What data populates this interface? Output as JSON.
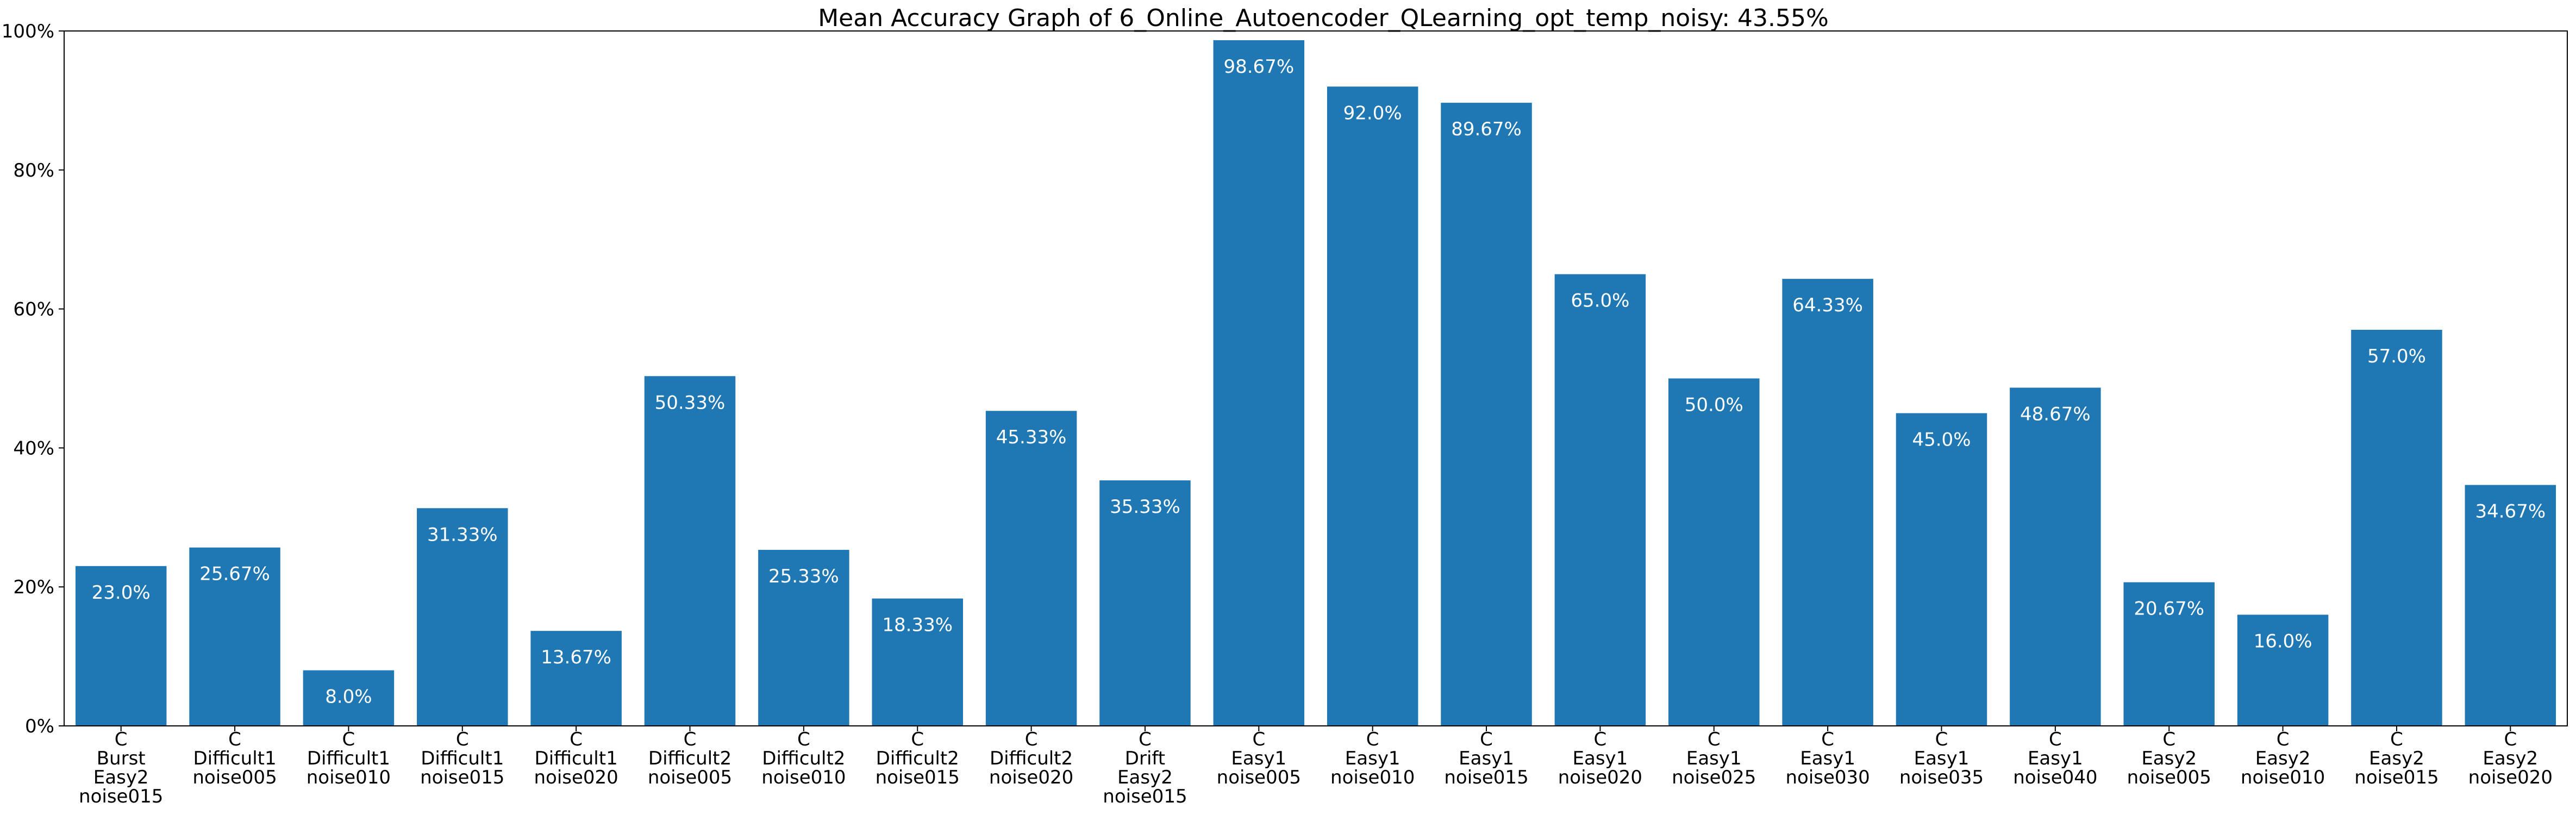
{
  "chart_data": {
    "type": "bar",
    "title": "Mean Accuracy Graph of 6_Online_Autoencoder_QLearning_opt_temp_noisy: 43.55%",
    "xlabel": "",
    "ylabel": "",
    "ylim": [
      0,
      100
    ],
    "y_ticks": [
      0,
      20,
      40,
      60,
      80,
      100
    ],
    "y_tick_labels": [
      "0%",
      "20%",
      "40%",
      "60%",
      "80%",
      "100%"
    ],
    "bar_color": "#1f77b4",
    "grid": false,
    "categories": [
      [
        "C",
        "Burst",
        "Easy2",
        "noise015"
      ],
      [
        "C",
        "Difficult1",
        "noise005"
      ],
      [
        "C",
        "Difficult1",
        "noise010"
      ],
      [
        "C",
        "Difficult1",
        "noise015"
      ],
      [
        "C",
        "Difficult1",
        "noise020"
      ],
      [
        "C",
        "Difficult2",
        "noise005"
      ],
      [
        "C",
        "Difficult2",
        "noise010"
      ],
      [
        "C",
        "Difficult2",
        "noise015"
      ],
      [
        "C",
        "Difficult2",
        "noise020"
      ],
      [
        "C",
        "Drift",
        "Easy2",
        "noise015"
      ],
      [
        "C",
        "Easy1",
        "noise005"
      ],
      [
        "C",
        "Easy1",
        "noise010"
      ],
      [
        "C",
        "Easy1",
        "noise015"
      ],
      [
        "C",
        "Easy1",
        "noise020"
      ],
      [
        "C",
        "Easy1",
        "noise025"
      ],
      [
        "C",
        "Easy1",
        "noise030"
      ],
      [
        "C",
        "Easy1",
        "noise035"
      ],
      [
        "C",
        "Easy1",
        "noise040"
      ],
      [
        "C",
        "Easy2",
        "noise005"
      ],
      [
        "C",
        "Easy2",
        "noise010"
      ],
      [
        "C",
        "Easy2",
        "noise015"
      ],
      [
        "C",
        "Easy2",
        "noise020"
      ]
    ],
    "values": [
      23.0,
      25.67,
      8.0,
      31.33,
      13.67,
      50.33,
      25.33,
      18.33,
      45.33,
      35.33,
      98.67,
      92.0,
      89.67,
      65.0,
      50.0,
      64.33,
      45.0,
      48.67,
      20.67,
      16.0,
      57.0,
      34.67
    ],
    "value_labels": [
      "23.0%",
      "25.67%",
      "8.0%",
      "31.33%",
      "13.67%",
      "50.33%",
      "25.33%",
      "18.33%",
      "45.33%",
      "35.33%",
      "98.67%",
      "92.0%",
      "89.67%",
      "65.0%",
      "50.0%",
      "64.33%",
      "45.0%",
      "48.67%",
      "20.67%",
      "16.0%",
      "57.0%",
      "34.67%"
    ]
  }
}
